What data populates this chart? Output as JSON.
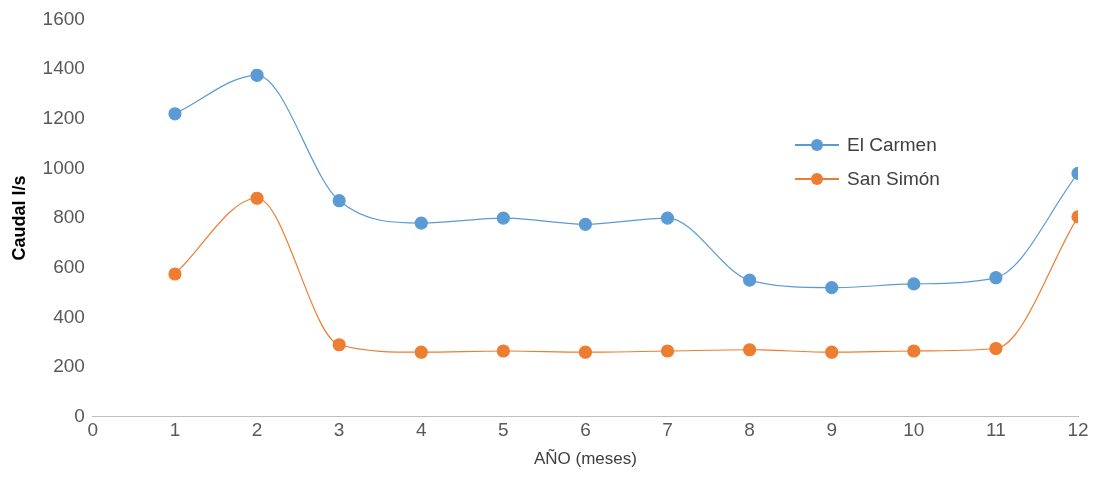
{
  "chart_data": {
    "type": "line",
    "xlabel": "AÑO (meses)",
    "ylabel": "Caudal l/s",
    "x": [
      1,
      2,
      3,
      4,
      5,
      6,
      7,
      8,
      9,
      10,
      11,
      12
    ],
    "series": [
      {
        "name": "El Carmen",
        "color": "#5b9bd5",
        "values": [
          1220,
          1375,
          870,
          780,
          800,
          775,
          800,
          550,
          520,
          535,
          560,
          980
        ]
      },
      {
        "name": "San Simón",
        "color": "#ed7d31",
        "values": [
          575,
          880,
          290,
          260,
          265,
          260,
          265,
          270,
          260,
          265,
          275,
          805
        ]
      }
    ],
    "xlim": [
      0,
      12
    ],
    "xticks": [
      0,
      1,
      2,
      3,
      4,
      5,
      6,
      7,
      8,
      9,
      10,
      11,
      12
    ],
    "ylim": [
      0,
      1600
    ],
    "yticks": [
      0,
      200,
      400,
      600,
      800,
      1000,
      1200,
      1400,
      1600
    ],
    "grid": false,
    "legend": "right",
    "marker": "circle",
    "line_style": "solid"
  }
}
